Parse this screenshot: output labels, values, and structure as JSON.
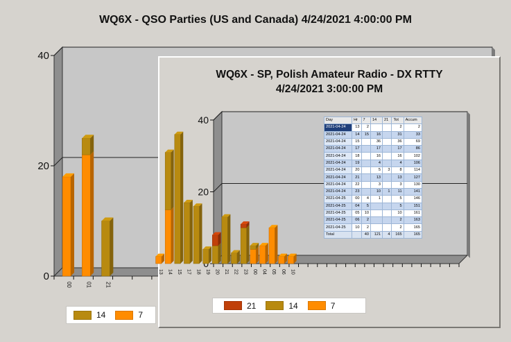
{
  "back_window": {
    "title": "WQ6X - QSO Parties (US and Canada) 4/24/2021 4:00:00 PM",
    "legend": [
      {
        "name": "14",
        "color": "#b88a10"
      },
      {
        "name": "7",
        "color": "#ff8c00"
      }
    ]
  },
  "front_window": {
    "title": "WQ6X - SP, Polish Amateur Radio - DX RTTY\n4/24/2021 3:00:00  PM",
    "legend": [
      {
        "name": "21",
        "color": "#c0400a"
      },
      {
        "name": "14",
        "color": "#b88a10"
      },
      {
        "name": "7",
        "color": "#ff8c00"
      }
    ],
    "table": {
      "headers": [
        "Day",
        "Hr",
        "7",
        "14",
        "21",
        "Tot",
        "Accum"
      ],
      "rows": [
        [
          "2021-04-24",
          "13",
          "2",
          "",
          "",
          "2",
          "2"
        ],
        [
          "2021-04-24",
          "14",
          "15",
          "16",
          "",
          "31",
          "33"
        ],
        [
          "2021-04-24",
          "15",
          "",
          "36",
          "",
          "36",
          "69"
        ],
        [
          "2021-04-24",
          "17",
          "",
          "17",
          "",
          "17",
          "86"
        ],
        [
          "2021-04-24",
          "18",
          "",
          "16",
          "",
          "16",
          "102"
        ],
        [
          "2021-04-24",
          "19",
          "",
          "4",
          "",
          "4",
          "106"
        ],
        [
          "2021-04-24",
          "20",
          "",
          "5",
          "3",
          "8",
          "114"
        ],
        [
          "2021-04-24",
          "21",
          "",
          "13",
          "",
          "13",
          "127"
        ],
        [
          "2021-04-24",
          "22",
          "",
          "3",
          "",
          "3",
          "130"
        ],
        [
          "2021-04-24",
          "23",
          "",
          "10",
          "1",
          "11",
          "141"
        ],
        [
          "2021-04-25",
          "00",
          "4",
          "1",
          "",
          "5",
          "146"
        ],
        [
          "2021-04-25",
          "04",
          "5",
          "",
          "",
          "5",
          "151"
        ],
        [
          "2021-04-25",
          "05",
          "10",
          "",
          "",
          "10",
          "161"
        ],
        [
          "2021-04-25",
          "06",
          "2",
          "",
          "",
          "2",
          "163"
        ],
        [
          "2021-04-25",
          "10",
          "2",
          "",
          "",
          "2",
          "165"
        ]
      ],
      "total": [
        "Total",
        "",
        "40",
        "121",
        "4",
        "165",
        "165"
      ]
    }
  },
  "chart_data": [
    {
      "type": "bar",
      "title": "WQ6X - QSO Parties (US and Canada) 4/24/2021 4:00:00 PM",
      "stacked": true,
      "categories": [
        "00",
        "01",
        "21"
      ],
      "series": [
        {
          "name": "7",
          "values": [
            18,
            22,
            0
          ]
        },
        {
          "name": "14",
          "values": [
            0,
            3,
            10
          ]
        }
      ],
      "ylim": [
        0,
        40
      ],
      "yticks": [
        0,
        20,
        40
      ],
      "grid": true,
      "legend": "bottom-left"
    },
    {
      "type": "bar",
      "title": "WQ6X - SP, Polish Amateur Radio - DX RTTY 4/24/2021 3:00:00 PM",
      "stacked": true,
      "categories": [
        "13",
        "14",
        "15",
        "17",
        "18",
        "19",
        "20",
        "21",
        "22",
        "23",
        "00",
        "04",
        "05",
        "06",
        "10"
      ],
      "series": [
        {
          "name": "7",
          "values": [
            2,
            15,
            0,
            0,
            0,
            0,
            0,
            0,
            0,
            0,
            4,
            5,
            10,
            2,
            2
          ]
        },
        {
          "name": "14",
          "values": [
            0,
            16,
            36,
            17,
            16,
            4,
            5,
            13,
            3,
            10,
            1,
            0,
            0,
            0,
            0
          ]
        },
        {
          "name": "21",
          "values": [
            0,
            0,
            0,
            0,
            0,
            0,
            3,
            0,
            0,
            1,
            0,
            0,
            0,
            0,
            0
          ]
        }
      ],
      "ylim": [
        0,
        40
      ],
      "yticks": [
        0,
        20,
        40
      ],
      "grid": true,
      "legend": "bottom-left"
    }
  ]
}
